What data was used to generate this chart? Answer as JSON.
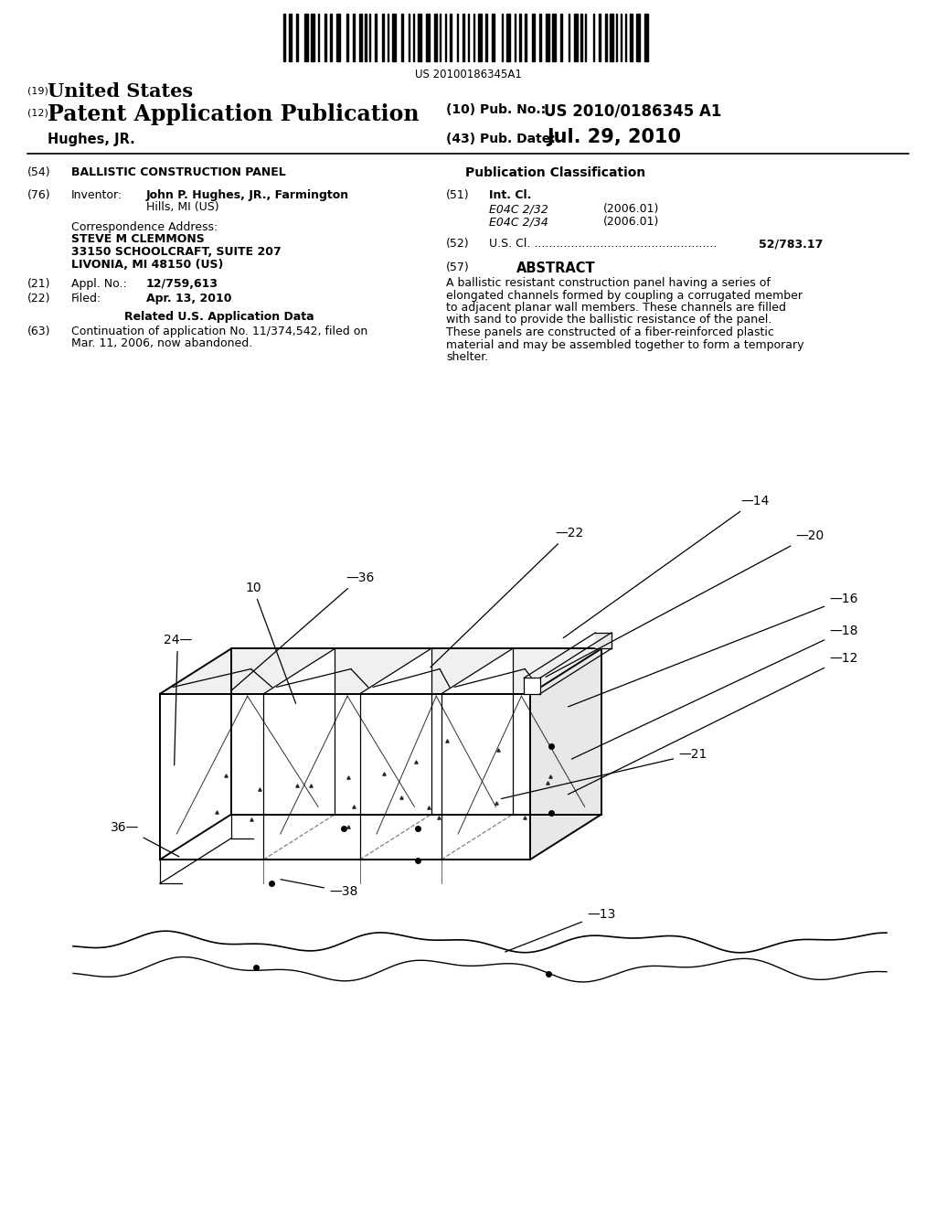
{
  "bg_color": "#ffffff",
  "barcode_text": "US 20100186345A1",
  "patent_number_label": "(19)",
  "patent_number_text": "United States",
  "pub_type_label": "(12)",
  "pub_type_text": "Patent Application Publication",
  "inventor_name": "Hughes, JR.",
  "pub_no_label": "(10) Pub. No.:",
  "pub_no_value": "US 2010/0186345 A1",
  "pub_date_label": "(43) Pub. Date:",
  "pub_date_value": "Jul. 29, 2010",
  "title_label": "(54)",
  "title_text": "BALLISTIC CONSTRUCTION PANEL",
  "pub_class_header": "Publication Classification",
  "inventor_key": "Inventor:",
  "inventor_value_1": "John P. Hughes, JR., Farmington",
  "inventor_value_2": "Hills, MI (US)",
  "corr_address_label": "Correspondence Address:",
  "corr_address_lines": [
    "STEVE M CLEMMONS",
    "33150 SCHOOLCRAFT, SUITE 207",
    "LIVONIA, MI 48150 (US)"
  ],
  "appl_key": "Appl. No.:",
  "appl_value": "12/759,613",
  "filed_key": "Filed:",
  "filed_value": "Apr. 13, 2010",
  "related_header": "Related U.S. Application Data",
  "continuation_text_1": "Continuation of application No. 11/374,542, filed on",
  "continuation_text_2": "Mar. 11, 2006, now abandoned.",
  "int_cl_key": "Int. Cl.",
  "int_cl_code1": "E04C 2/32",
  "int_cl_year1": "(2006.01)",
  "int_cl_code2": "E04C 2/34",
  "int_cl_year2": "(2006.01)",
  "us_cl_value": "52/783.17",
  "abstract_header": "ABSTRACT",
  "abstract_lines": [
    "A ballistic resistant construction panel having a series of",
    "elongated channels formed by coupling a corrugated member",
    "to adjacent planar wall members. These channels are filled",
    "with sand to provide the ballistic resistance of the panel.",
    "These panels are constructed of a fiber-reinforced plastic",
    "material and may be assembled together to form a temporary",
    "shelter."
  ]
}
